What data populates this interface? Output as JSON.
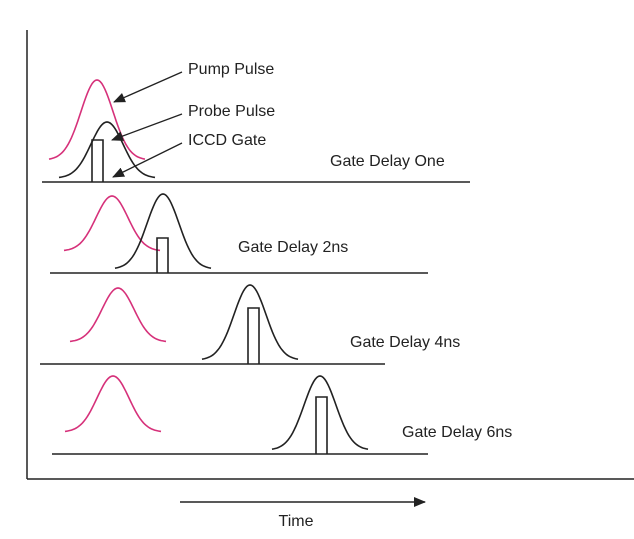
{
  "labels": {
    "pump": "Pump Pulse",
    "probe": "Probe Pulse",
    "gate": "ICCD Gate"
  },
  "rows": [
    {
      "label": "Gate Delay One"
    },
    {
      "label": "Gate Delay 2ns"
    },
    {
      "label": "Gate Delay 4ns"
    },
    {
      "label": "Gate Delay 6ns"
    }
  ],
  "axis": {
    "label": "Time"
  }
}
